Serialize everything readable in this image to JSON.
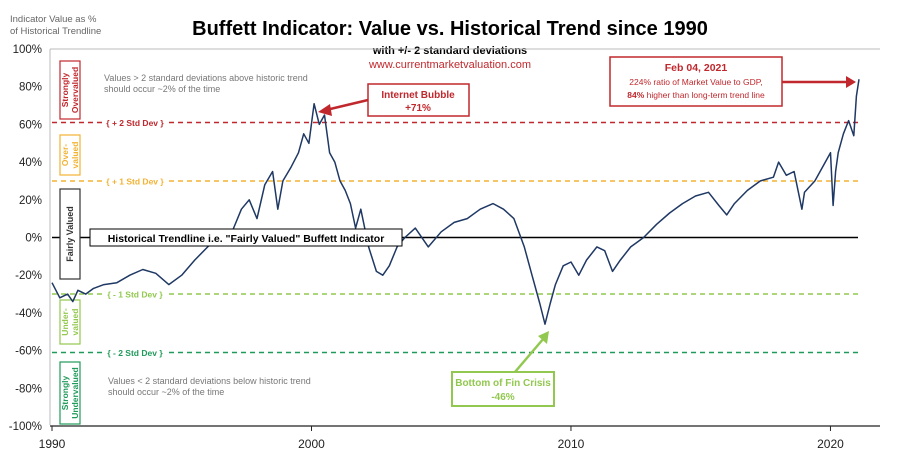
{
  "chart_data": {
    "type": "line",
    "title": "Buffett Indicator: Value vs. Historical Trend since 1990",
    "subtitle": "with +/- 2 standard deviations",
    "source_url": "www.currentmarketvaluation.com",
    "ylabel_line1": "Indicator Value as %",
    "ylabel_line2": "of Historical Trendline",
    "xlim": [
      1990,
      2021.5
    ],
    "ylim": [
      -100,
      100
    ],
    "x_ticks": [
      1990,
      2000,
      2010,
      2020
    ],
    "x_tick_labels": [
      "1990",
      "2000",
      "2010",
      "2020"
    ],
    "y_ticks": [
      100,
      80,
      60,
      40,
      20,
      0,
      -20,
      -40,
      -60,
      -80,
      -100
    ],
    "y_tick_labels": [
      "100%",
      "80%",
      "60%",
      "40%",
      "20%",
      "0%",
      "-20%",
      "-40%",
      "-60%",
      "-80%",
      "-100%"
    ],
    "reference_lines": [
      {
        "label": "+ 2 Std Dev",
        "y": 61,
        "color": "#c0282d"
      },
      {
        "label": "+ 1 Std Dev",
        "y": 30,
        "color": "#f2b233"
      },
      {
        "label": "Historical Trendline i.e. \"Fairly Valued\" Buffett Indicator",
        "y": 0,
        "color": "#000000"
      },
      {
        "label": "- 1 Std Dev",
        "y": -30,
        "color": "#92c84f"
      },
      {
        "label": "- 2 Std Dev",
        "y": -61,
        "color": "#1f9a5a"
      }
    ],
    "zones": [
      {
        "label": "Strongly Overvalued",
        "color": "#c0282d"
      },
      {
        "label": "Over-valued",
        "color": "#f2b233"
      },
      {
        "label": "Fairly Valued",
        "color": "#333333"
      },
      {
        "label": "Under-valued",
        "color": "#92c84f"
      },
      {
        "label": "Strongly Undervalued",
        "color": "#1f9a5a"
      }
    ],
    "notes": {
      "above": "Values > 2 standard deviations above historic trend should occur ~2% of the time",
      "below": "Values < 2 standard deviations below historic trend should occur ~2% of the time"
    },
    "annotations": {
      "bubble": {
        "title": "Internet Bubble",
        "value": "+71%",
        "x": 2000.2,
        "y": 70
      },
      "crisis": {
        "title": "Bottom of Fin Crisis",
        "value": "-46%",
        "x": 2009.2,
        "y": -46
      },
      "latest": {
        "date": "Feb 04, 2021",
        "line1": "224% ratio of Market Value to GDP,",
        "line2_bold": "84%",
        "line2_rest": " higher than long-term trend line",
        "x": 2021.1,
        "y": 84
      }
    },
    "series": [
      {
        "color": "#1f3864",
        "x": [
          1990.0,
          1990.3,
          1990.6,
          1990.8,
          1991.0,
          1991.3,
          1991.6,
          1992.0,
          1992.5,
          1993.0,
          1993.5,
          1994.0,
          1994.5,
          1995.0,
          1995.5,
          1996.0,
          1996.5,
          1996.8,
          1997.0,
          1997.3,
          1997.6,
          1997.9,
          1998.2,
          1998.5,
          1998.7,
          1998.9,
          1999.2,
          1999.5,
          1999.7,
          1999.9,
          2000.1,
          2000.3,
          2000.5,
          2000.7,
          2000.9,
          2001.1,
          2001.3,
          2001.5,
          2001.7,
          2001.9,
          2002.2,
          2002.5,
          2002.75,
          2003.0,
          2003.3,
          2003.6,
          2004.0,
          2004.5,
          2005.0,
          2005.5,
          2006.0,
          2006.5,
          2007.0,
          2007.4,
          2007.8,
          2008.2,
          2008.5,
          2008.8,
          2009.0,
          2009.2,
          2009.4,
          2009.7,
          2010.0,
          2010.3,
          2010.6,
          2011.0,
          2011.3,
          2011.6,
          2011.9,
          2012.3,
          2012.8,
          2013.3,
          2013.8,
          2014.3,
          2014.8,
          2015.3,
          2015.7,
          2016.0,
          2016.3,
          2016.8,
          2017.3,
          2017.8,
          2018.0,
          2018.3,
          2018.6,
          2018.9,
          2019.0,
          2019.4,
          2019.8,
          2020.0,
          2020.1,
          2020.2,
          2020.3,
          2020.5,
          2020.7,
          2020.9,
          2021.0,
          2021.1
        ],
        "y": [
          -24,
          -32,
          -30,
          -34,
          -28,
          -30,
          -27,
          -25,
          -24,
          -20,
          -17,
          -19,
          -25,
          -20,
          -12,
          -5,
          2,
          -2,
          5,
          15,
          20,
          10,
          28,
          35,
          15,
          30,
          37,
          45,
          55,
          50,
          71,
          60,
          65,
          45,
          40,
          30,
          25,
          18,
          5,
          15,
          -5,
          -18,
          -20,
          -15,
          -5,
          0,
          5,
          -5,
          3,
          8,
          10,
          15,
          18,
          15,
          10,
          -5,
          -20,
          -35,
          -46,
          -35,
          -25,
          -15,
          -13,
          -20,
          -12,
          -5,
          -7,
          -18,
          -12,
          -5,
          0,
          7,
          13,
          18,
          22,
          24,
          17,
          12,
          18,
          25,
          30,
          32,
          40,
          33,
          35,
          15,
          24,
          30,
          40,
          45,
          17,
          35,
          45,
          55,
          62,
          54,
          75,
          84
        ]
      }
    ]
  }
}
